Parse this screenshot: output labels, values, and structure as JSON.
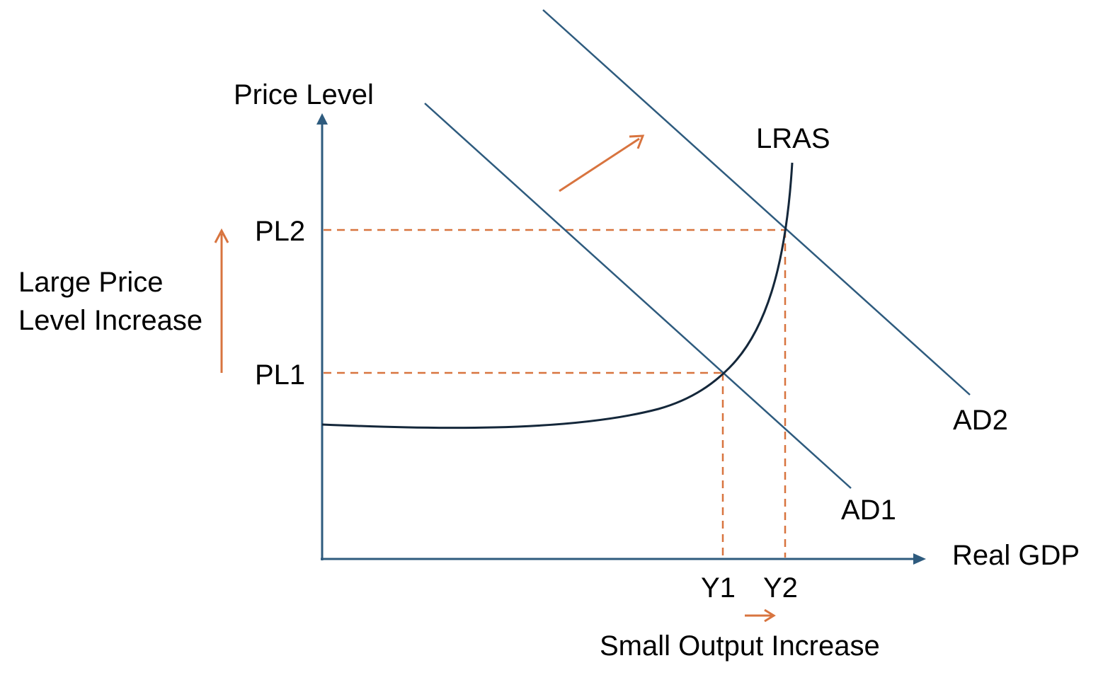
{
  "axes": {
    "y_label": "Price Level",
    "x_label": "Real GDP"
  },
  "curves": {
    "lras_label": "LRAS",
    "ad1_label": "AD1",
    "ad2_label": "AD2"
  },
  "levels": {
    "pl1": "PL1",
    "pl2": "PL2",
    "y1": "Y1",
    "y2": "Y2"
  },
  "annotations": {
    "price_increase_line1": "Large Price",
    "price_increase_line2": "Level Increase",
    "output_increase": "Small Output Increase"
  },
  "colors": {
    "axis": "#2e5b7e",
    "curve": "#2e5b7e",
    "lras": "#14273a",
    "accent": "#d8743f"
  }
}
